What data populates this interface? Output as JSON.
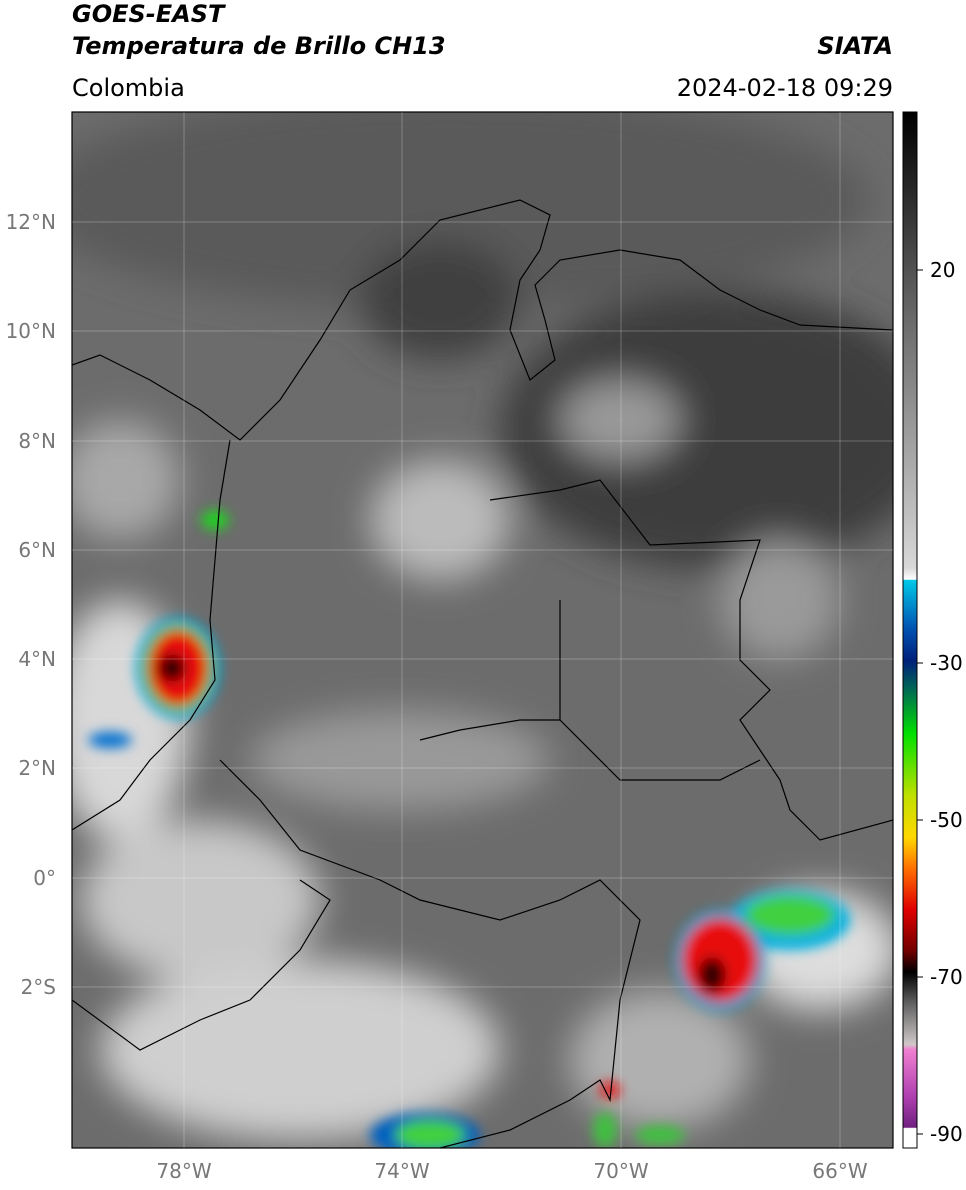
{
  "header": {
    "satellite": "GOES-EAST",
    "product": "Temperatura de Brillo CH13",
    "source": "SIATA",
    "region": "Colombia",
    "timestamp": "2024-02-18 09:29"
  },
  "map": {
    "lat_labels": [
      "12°N",
      "10°N",
      "8°N",
      "6°N",
      "4°N",
      "2°N",
      "0°",
      "2°S"
    ],
    "lon_labels": [
      "78°W",
      "74°W",
      "70°W",
      "66°W"
    ]
  },
  "colorbar": {
    "labels": [
      "20",
      "-30",
      "-50",
      "-70",
      "-90"
    ]
  }
}
